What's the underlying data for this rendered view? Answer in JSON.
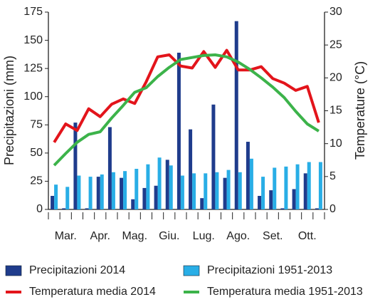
{
  "chart_data": {
    "type": "bar-line",
    "y_label": "Precipitazioni (mm)",
    "y2_label": "Temperature (°C)",
    "categories": [
      null,
      "Mar.",
      null,
      null,
      "Apr.",
      null,
      null,
      "Mag.",
      null,
      null,
      "Giu.",
      null,
      null,
      "Lug.",
      null,
      null,
      "Ago.",
      null,
      null,
      "Set.",
      null,
      null,
      "Ott.",
      null
    ],
    "ylim": [
      0,
      175
    ],
    "yticks": [
      0,
      25,
      50,
      75,
      100,
      125,
      150,
      175
    ],
    "y2lim": [
      0,
      30
    ],
    "y2ticks": [
      0,
      5,
      10,
      15,
      20,
      25,
      30
    ],
    "series": [
      {
        "name": "Precipitazioni 2014",
        "type": "bar",
        "color": "#1f3c8c",
        "values": [
          12,
          1,
          77,
          1,
          29,
          73,
          28,
          9,
          19,
          21,
          44,
          139,
          71,
          10,
          93,
          28,
          167,
          60,
          12,
          17,
          1,
          18,
          32,
          1
        ]
      },
      {
        "name": "Precipitazioni 1951-2013",
        "type": "bar",
        "color": "#29aee6",
        "values": [
          22,
          20,
          30,
          29,
          31,
          33,
          34,
          36,
          40,
          46,
          39,
          30,
          32,
          32,
          33,
          35,
          33,
          45,
          29,
          37,
          38,
          40,
          42,
          42
        ]
      },
      {
        "name": "Temperatura media 2014",
        "type": "line",
        "axis": "y2",
        "color": "#e3141b",
        "values": [
          10.2,
          13,
          12,
          15.3,
          14.1,
          16,
          16.8,
          16.1,
          19.4,
          23.2,
          23.5,
          21.8,
          21.5,
          24,
          21.6,
          24.2,
          21.2,
          21.2,
          21.7,
          19.9,
          19.2,
          18.1,
          18.7,
          13.2
        ]
      },
      {
        "name": "Temperatura media 1951-2013",
        "type": "line",
        "axis": "y2",
        "color": "#3cb34a",
        "values": [
          6.7,
          8.5,
          10.2,
          11.4,
          11.8,
          13.9,
          15.8,
          17.8,
          18.5,
          20.2,
          21.6,
          22.8,
          23.1,
          23.4,
          23.5,
          23.2,
          22.4,
          21.3,
          20,
          18.6,
          17,
          14.9,
          13,
          11.9
        ]
      }
    ]
  }
}
